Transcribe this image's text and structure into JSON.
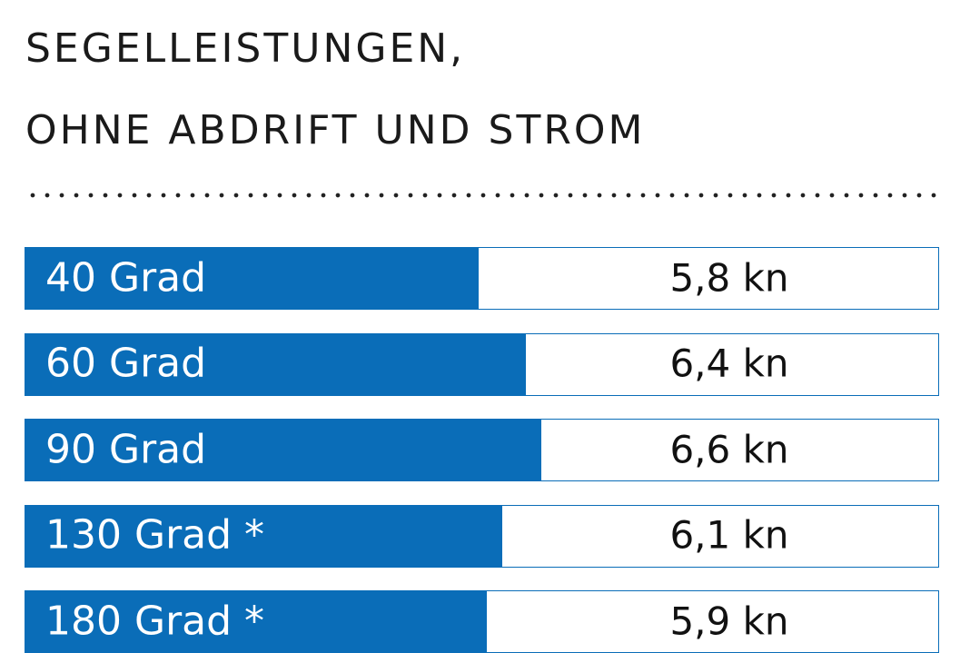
{
  "chart_data": {
    "type": "bar",
    "orientation": "horizontal",
    "title": "SEGELLEISTUNGEN, OHNE ABDRIFT UND STROM",
    "title_lines": [
      "SEGELLEISTUNGEN,",
      "OHNE ABDRIFT UND STROM"
    ],
    "categories": [
      "40 Grad",
      "60 Grad",
      "90 Grad",
      "130 Grad *",
      "180 Grad *"
    ],
    "values": [
      5.8,
      6.4,
      6.6,
      6.1,
      5.9
    ],
    "value_labels": [
      "5,8 kn",
      "6,4 kn",
      "6,6 kn",
      "6,1 kn",
      "5,9 kn"
    ],
    "unit": "kn",
    "xlim": [
      0,
      11.7
    ],
    "xlabel": "",
    "ylabel": ""
  },
  "colors": {
    "bar": "#0a6db8",
    "text": "#1a1a1a"
  }
}
